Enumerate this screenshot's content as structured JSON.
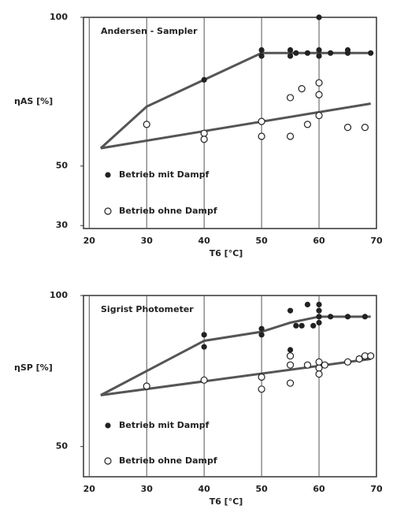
{
  "chart_data": [
    {
      "type": "line",
      "title": "Andersen - Sampler",
      "xlabel": "T6 [°C]",
      "ylabel": "ηAS [%]",
      "xlim": [
        19,
        70
      ],
      "ylim": [
        29,
        100
      ],
      "xticks": [
        20,
        30,
        40,
        50,
        60,
        70
      ],
      "yticks": [
        30,
        50,
        100
      ],
      "series": [
        {
          "name": "Betrieb mit Dampf",
          "marker": "filled",
          "x": [
            40,
            50,
            50,
            55,
            55,
            56,
            58,
            60,
            60,
            60,
            62,
            65,
            65,
            69
          ],
          "values": [
            79,
            89,
            87,
            87,
            89,
            88,
            88,
            100,
            89,
            87,
            88,
            89,
            88,
            88
          ],
          "fit_x": [
            22,
            30,
            40,
            50,
            55,
            60,
            69
          ],
          "fit_values": [
            56,
            70,
            79,
            88,
            88,
            88,
            88
          ]
        },
        {
          "name": "Betrieb ohne Dampf",
          "marker": "open",
          "x": [
            30,
            40,
            40,
            50,
            50,
            55,
            55,
            57,
            58,
            60,
            60,
            60,
            65,
            68
          ],
          "values": [
            64,
            61,
            59,
            65,
            60,
            73,
            60,
            76,
            64,
            78,
            74,
            67,
            63,
            63
          ],
          "fit_x": [
            22,
            69
          ],
          "fit_values": [
            56,
            71
          ]
        }
      ]
    },
    {
      "type": "line",
      "title": "Sigrist Photometer",
      "xlabel": "T6 [°C]",
      "ylabel": "ηSP [%]",
      "xlim": [
        19,
        70
      ],
      "ylim": [
        40,
        100
      ],
      "xticks": [
        20,
        30,
        40,
        50,
        60,
        70
      ],
      "yticks": [
        50,
        100
      ],
      "series": [
        {
          "name": "Betrieb mit Dampf",
          "marker": "filled",
          "x": [
            40,
            40,
            50,
            50,
            55,
            55,
            56,
            57,
            58,
            59,
            60,
            60,
            60,
            60,
            62,
            65,
            68
          ],
          "values": [
            87,
            83,
            89,
            87,
            95,
            82,
            90,
            90,
            97,
            90,
            97,
            95,
            93,
            91,
            93,
            93,
            93
          ],
          "fit_x": [
            22,
            30,
            40,
            50,
            55,
            60,
            69
          ],
          "fit_values": [
            67,
            75,
            85,
            88,
            91,
            93,
            93
          ]
        },
        {
          "name": "Betrieb ohne Dampf",
          "marker": "open",
          "x": [
            30,
            40,
            50,
            50,
            55,
            55,
            55,
            58,
            60,
            60,
            60,
            61,
            65,
            67,
            68,
            69
          ],
          "values": [
            70,
            72,
            73,
            69,
            80,
            77,
            71,
            77,
            76,
            78,
            74,
            77,
            78,
            79,
            80,
            80
          ],
          "fit_x": [
            22,
            69
          ],
          "fit_values": [
            67,
            79
          ]
        }
      ]
    }
  ]
}
